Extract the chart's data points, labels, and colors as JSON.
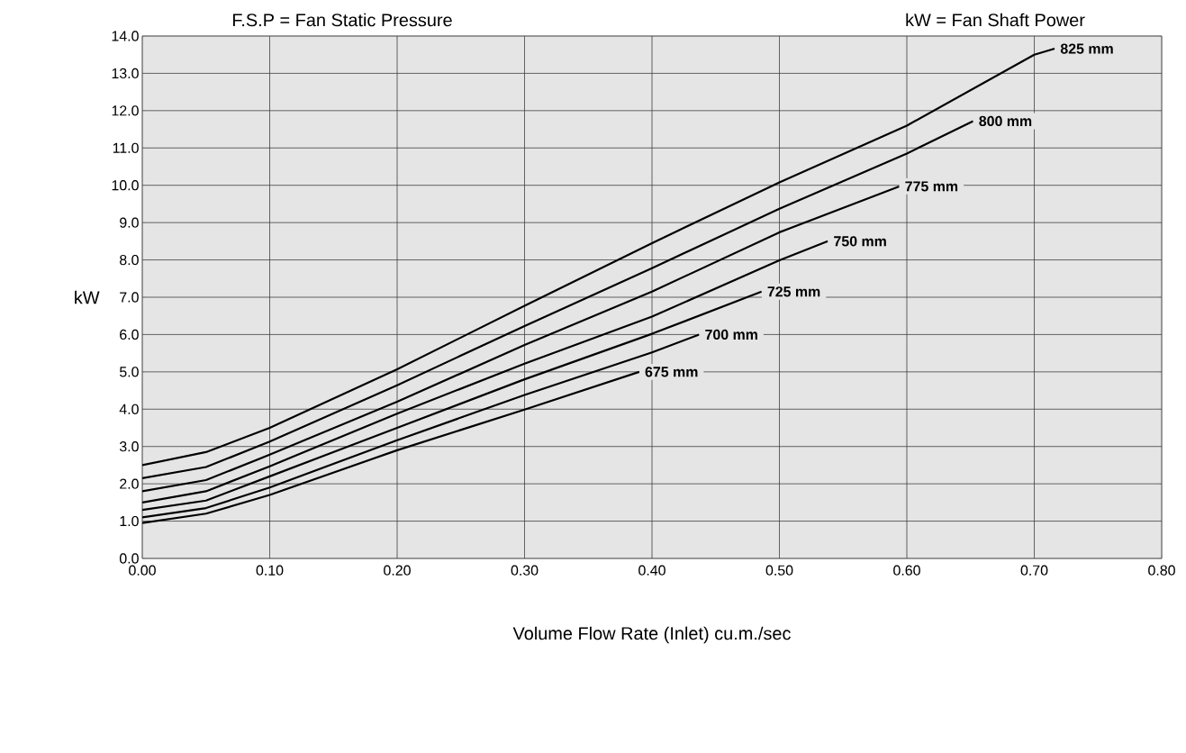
{
  "chart_data": {
    "type": "line",
    "xlabel": "Volume Flow Rate (Inlet) cu.m./sec",
    "ylabel": "kW",
    "annotations": [
      "F.S.P = Fan Static Pressure",
      "kW = Fan Shaft Power"
    ],
    "xlim": [
      0,
      0.8
    ],
    "ylim": [
      0,
      14
    ],
    "xticks": [
      {
        "value": 0,
        "label": "0.00"
      },
      {
        "value": 0.1,
        "label": "0.10"
      },
      {
        "value": 0.2,
        "label": "0.20"
      },
      {
        "value": 0.3,
        "label": "0.30"
      },
      {
        "value": 0.4,
        "label": "0.40"
      },
      {
        "value": 0.5,
        "label": "0.50"
      },
      {
        "value": 0.6,
        "label": "0.60"
      },
      {
        "value": 0.7,
        "label": "0.70"
      },
      {
        "value": 0.8,
        "label": "0.80"
      }
    ],
    "yticks": [
      {
        "value": 0,
        "label": "0.0"
      },
      {
        "value": 1,
        "label": "1.0"
      },
      {
        "value": 2,
        "label": "2.0"
      },
      {
        "value": 3,
        "label": "3.0"
      },
      {
        "value": 4,
        "label": "4.0"
      },
      {
        "value": 5,
        "label": "5.0"
      },
      {
        "value": 6,
        "label": "6.0"
      },
      {
        "value": 7,
        "label": "7.0"
      },
      {
        "value": 8,
        "label": "8.0"
      },
      {
        "value": 9,
        "label": "9.0"
      },
      {
        "value": 10,
        "label": "10.0"
      },
      {
        "value": 11,
        "label": "11.0"
      },
      {
        "value": 12,
        "label": "12.0"
      },
      {
        "value": 13,
        "label": "13.0"
      },
      {
        "value": 14,
        "label": "14.0"
      }
    ],
    "grid": true,
    "marker": "none",
    "line_style": "solid",
    "series": [
      {
        "name": "825 mm",
        "color": "#000000",
        "x": [
          0,
          0.05,
          0.1,
          0.2,
          0.3,
          0.4,
          0.5,
          0.6,
          0.7,
          0.716
        ],
        "values": [
          2.5,
          2.85,
          3.5,
          5.07,
          6.77,
          8.45,
          10.08,
          11.6,
          13.5,
          13.66
        ]
      },
      {
        "name": "800 mm",
        "color": "#000000",
        "x": [
          0,
          0.05,
          0.1,
          0.2,
          0.3,
          0.4,
          0.5,
          0.6,
          0.652
        ],
        "values": [
          2.15,
          2.45,
          3.13,
          4.64,
          6.23,
          7.78,
          9.37,
          10.85,
          11.72
        ]
      },
      {
        "name": "775 mm",
        "color": "#000000",
        "x": [
          0,
          0.05,
          0.1,
          0.2,
          0.3,
          0.4,
          0.5,
          0.594
        ],
        "values": [
          1.8,
          2.1,
          2.78,
          4.2,
          5.72,
          7.15,
          8.74,
          9.97
        ]
      },
      {
        "name": "750 mm",
        "color": "#000000",
        "x": [
          0,
          0.05,
          0.1,
          0.2,
          0.3,
          0.4,
          0.5,
          0.538
        ],
        "values": [
          1.5,
          1.8,
          2.47,
          3.88,
          5.22,
          6.48,
          7.99,
          8.5
        ]
      },
      {
        "name": "725 mm",
        "color": "#000000",
        "x": [
          0,
          0.05,
          0.1,
          0.2,
          0.3,
          0.4,
          0.486
        ],
        "values": [
          1.3,
          1.55,
          2.2,
          3.5,
          4.8,
          6.02,
          7.15
        ]
      },
      {
        "name": "700 mm",
        "color": "#000000",
        "x": [
          0,
          0.05,
          0.1,
          0.2,
          0.3,
          0.4,
          0.437
        ],
        "values": [
          1.1,
          1.35,
          1.9,
          3.17,
          4.38,
          5.52,
          6.0
        ]
      },
      {
        "name": "675 mm",
        "color": "#000000",
        "x": [
          0,
          0.05,
          0.1,
          0.2,
          0.3,
          0.39
        ],
        "values": [
          0.95,
          1.2,
          1.7,
          2.9,
          3.99,
          5.0
        ]
      }
    ]
  }
}
